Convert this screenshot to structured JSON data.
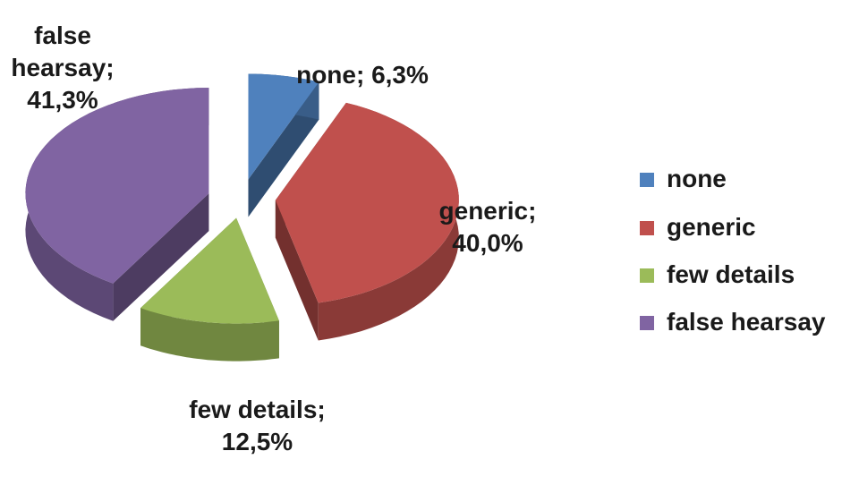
{
  "chart_data": {
    "type": "pie",
    "categories": [
      "none",
      "generic",
      "few details",
      "false hearsay"
    ],
    "values": [
      6.3,
      40.0,
      12.5,
      41.3
    ],
    "value_labels": [
      "none; 6,3%",
      "generic; 40,0%",
      "few details; 12,5%",
      "false hearsay; 41,3%"
    ],
    "colors": [
      "#4f81bd",
      "#c0504d",
      "#9bbb59",
      "#8064a2"
    ],
    "legend": "right"
  }
}
